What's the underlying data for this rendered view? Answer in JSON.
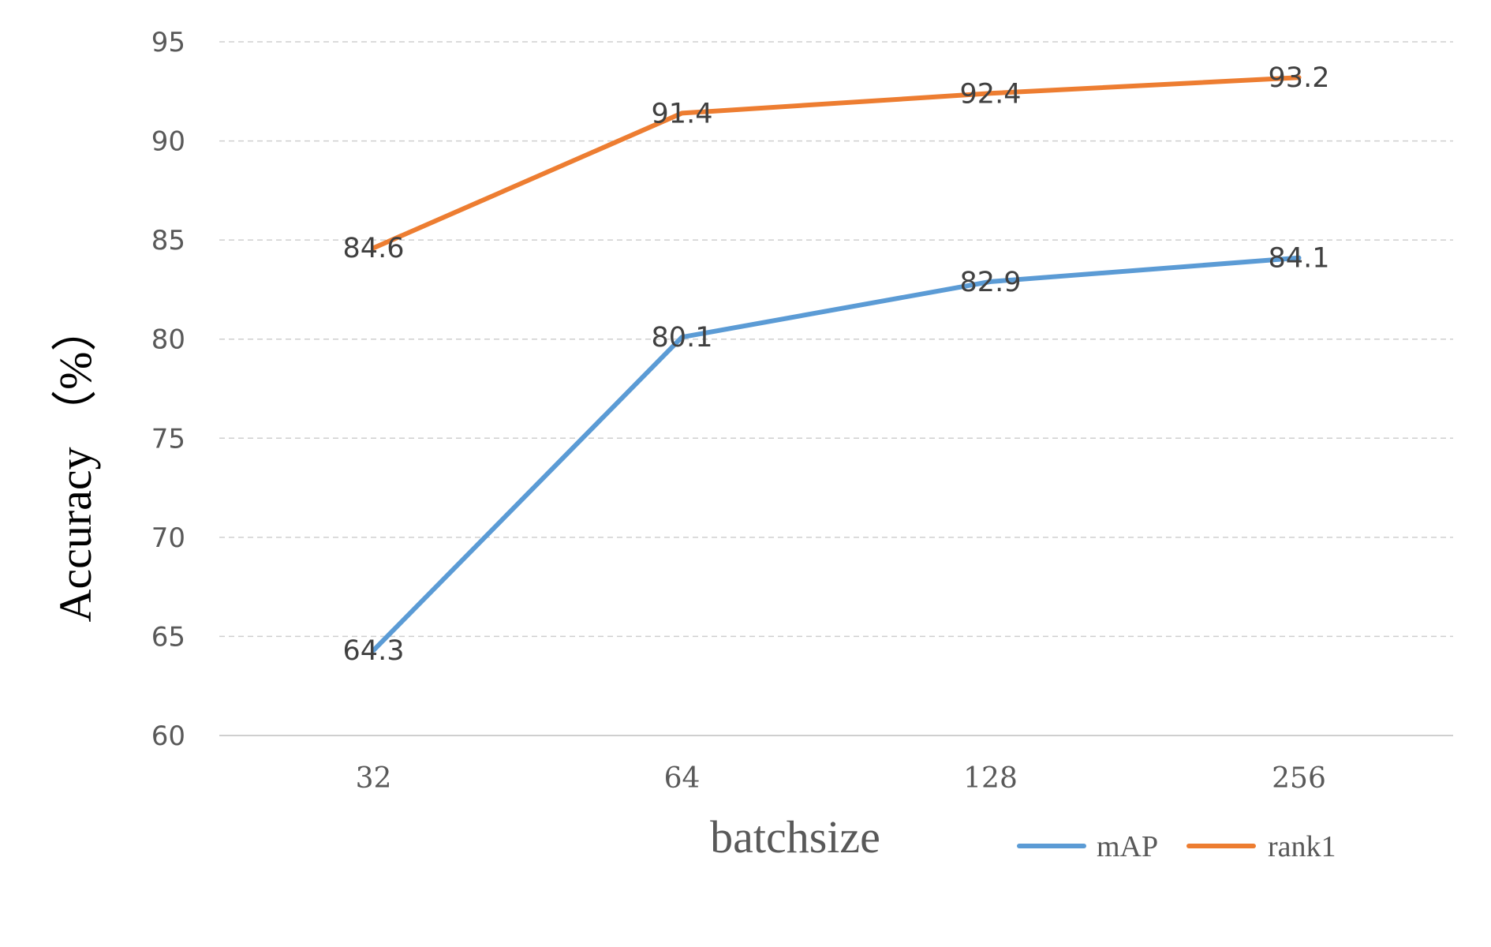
{
  "chart_data": {
    "type": "line",
    "title": "",
    "xlabel": "batchsize",
    "ylabel": "Accuracy （%）",
    "categories": [
      "32",
      "64",
      "128",
      "256"
    ],
    "series": [
      {
        "name": "mAP",
        "color": "#5b9bd5",
        "values": [
          64.3,
          80.1,
          82.9,
          84.1
        ]
      },
      {
        "name": "rank1",
        "color": "#ed7d31",
        "values": [
          84.6,
          91.4,
          92.4,
          93.2
        ]
      }
    ],
    "ylim": [
      60,
      95
    ],
    "yticks": [
      60,
      65,
      70,
      75,
      80,
      85,
      90,
      95
    ],
    "grid": true,
    "legend": "bottom-right"
  }
}
